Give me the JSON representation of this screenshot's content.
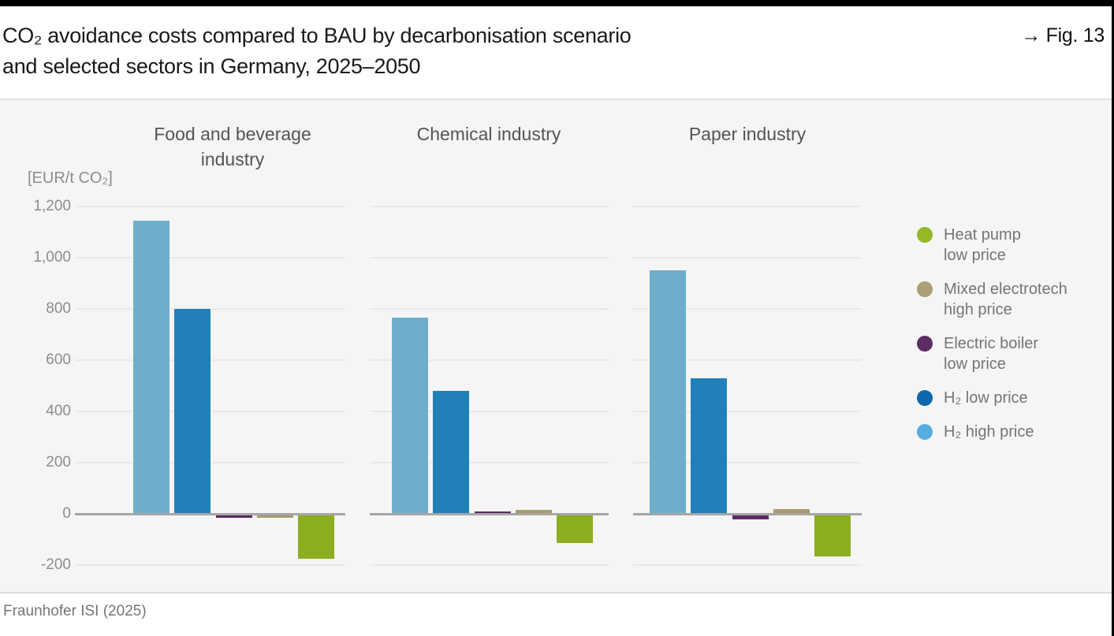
{
  "frame": {
    "fig_label": "→ Fig. 13",
    "source": "Fraunhofer ISI (2025)"
  },
  "title": {
    "line1": "CO₂ avoidance costs compared to BAU by decarbonisation scenario",
    "line2": "and selected sectors in Germany, 2025–2050"
  },
  "y_axis": {
    "unit_label": "[EUR/t CO₂]",
    "tick_labels": [
      "1,200",
      "1,000",
      "800",
      "600",
      "400",
      "200",
      "0",
      "-200"
    ],
    "tick_values": [
      1200,
      1000,
      800,
      600,
      400,
      200,
      0,
      -200
    ]
  },
  "panels": [
    {
      "title": "Food and beverage\nindustry"
    },
    {
      "title": "Chemical industry"
    },
    {
      "title": "Paper industry"
    }
  ],
  "legend": {
    "items": [
      {
        "label": "Heat pump\nlow price",
        "series": "Heat pump low price",
        "color": "#95B827"
      },
      {
        "label": "Mixed electrotech\nhigh price",
        "series": "Mixed electrotech high price",
        "color": "#AB9F76"
      },
      {
        "label": "Electric boiler\nlow price",
        "series": "Electric boiler low price",
        "color": "#5C2D63"
      },
      {
        "label": "H₂ low price",
        "series": "H₂ low price",
        "color": "#0E67AE"
      },
      {
        "label": "H₂ high price",
        "series": "H₂ high price",
        "color": "#58ACE0"
      }
    ]
  },
  "chart_data": {
    "type": "bar",
    "title": "CO₂ avoidance costs compared to BAU by decarbonisation scenario and selected sectors in Germany, 2025–2050",
    "ylabel": "EUR/t CO₂",
    "ylim": [
      -300,
      1250
    ],
    "grid": true,
    "legend_position": "right",
    "categories": [
      "Food and beverage industry",
      "Chemical industry",
      "Paper industry"
    ],
    "series": [
      {
        "name": "H₂ high price",
        "color": "#6FAECB",
        "values": [
          1145,
          765,
          950
        ]
      },
      {
        "name": "H₂ low price",
        "color": "#2180B8",
        "values": [
          800,
          480,
          530
        ]
      },
      {
        "name": "Electric boiler low price",
        "color": "#5B2A62",
        "values": [
          -15,
          10,
          -20
        ]
      },
      {
        "name": "Mixed electrotech high price",
        "color": "#A99C70",
        "values": [
          -15,
          15,
          20
        ]
      },
      {
        "name": "Heat pump low price",
        "color": "#8CAE21",
        "values": [
          -175,
          -115,
          -165
        ]
      }
    ]
  },
  "colors": {
    "chart_background": "#F5F5F6",
    "gridline": "#E9E9E9",
    "zero_line": "#A6A6A6",
    "top_bar": "#000000",
    "title_text": "#191919",
    "axis_text": "#8C8C8C",
    "legend_text": "#757575"
  }
}
